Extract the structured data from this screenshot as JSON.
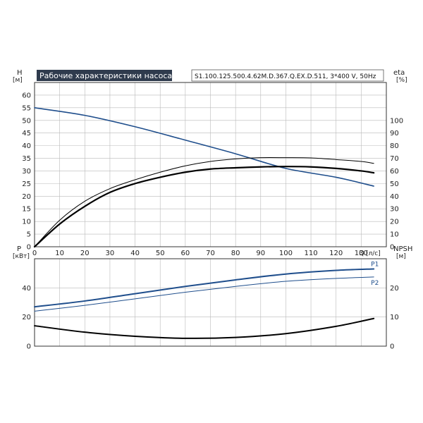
{
  "title": "Рабочие характеристики насоса",
  "model": "S1.100.125.500.4.62M.D.367.Q.EX.D.511, 3*400 V, 50Hz",
  "colors": {
    "blue": "#1f4e8c",
    "black": "#000000",
    "grid": "#b9b9b9",
    "title_bg": "#2f3b4d"
  },
  "chart_data": [
    {
      "type": "line",
      "xlabel": "Q",
      "xunit": "[л/с]",
      "x_ticks": [
        0,
        10,
        20,
        30,
        40,
        50,
        60,
        70,
        80,
        90,
        100,
        110,
        120,
        130
      ],
      "xlim": [
        0,
        140
      ],
      "left_axis": {
        "label": "H",
        "unit": "[м]",
        "ylim": [
          0,
          65
        ],
        "ticks": [
          0,
          5,
          10,
          15,
          20,
          25,
          30,
          35,
          40,
          45,
          50,
          55,
          60
        ]
      },
      "right_axis": {
        "label": "eta",
        "unit": "[%]",
        "ylim": [
          0,
          130
        ],
        "ticks": [
          0,
          10,
          20,
          30,
          40,
          50,
          60,
          70,
          80,
          90,
          100
        ]
      },
      "grid": true,
      "series": [
        {
          "axis": "left",
          "color": "#1f4e8c",
          "width": 1.6,
          "x": [
            0,
            20,
            40,
            60,
            80,
            100,
            120,
            135
          ],
          "y": [
            55,
            52,
            47.5,
            42.2,
            36.8,
            31,
            27.5,
            24
          ]
        },
        {
          "axis": "right",
          "color": "#000000",
          "width": 1.0,
          "x": [
            0,
            10,
            20,
            30,
            40,
            50,
            60,
            70,
            80,
            90,
            100,
            110,
            120,
            130,
            135
          ],
          "y": [
            0,
            21,
            36,
            46,
            53,
            59,
            64,
            67.5,
            69.5,
            70.5,
            70.5,
            70.3,
            69,
            67.5,
            66
          ]
        },
        {
          "axis": "right",
          "color": "#000000",
          "width": 2.2,
          "x": [
            0,
            10,
            20,
            30,
            40,
            50,
            60,
            70,
            80,
            90,
            100,
            110,
            120,
            130,
            135
          ],
          "y": [
            0,
            18,
            32,
            43,
            50,
            55,
            59,
            61.5,
            62.5,
            63.2,
            63.5,
            63.2,
            62,
            60,
            58.5
          ]
        }
      ]
    },
    {
      "type": "line",
      "x_ticks": [],
      "xlim": [
        0,
        140
      ],
      "left_axis": {
        "label": "P",
        "unit": "[кВт]",
        "ylim": [
          0,
          60
        ],
        "ticks": [
          0,
          20,
          40
        ]
      },
      "right_axis": {
        "label": "NPSH",
        "unit": "[м]",
        "ylim": [
          0,
          30
        ],
        "ticks": [
          0,
          10,
          20
        ]
      },
      "grid": true,
      "series": [
        {
          "name": "P1",
          "axis": "left",
          "color": "#1f4e8c",
          "width": 2.0,
          "x": [
            0,
            20,
            40,
            60,
            80,
            100,
            120,
            135
          ],
          "y": [
            27,
            31,
            36,
            41,
            45.5,
            49.5,
            52,
            53
          ]
        },
        {
          "name": "P2",
          "axis": "left",
          "color": "#1f4e8c",
          "width": 1.0,
          "x": [
            0,
            20,
            40,
            60,
            80,
            100,
            120,
            135
          ],
          "y": [
            24,
            28,
            32.5,
            37,
            41,
            44.5,
            46.5,
            47.5
          ]
        },
        {
          "axis": "right",
          "color": "#000000",
          "width": 2.0,
          "x": [
            0,
            20,
            40,
            60,
            80,
            100,
            120,
            135
          ],
          "y": [
            7,
            4.8,
            3.4,
            2.7,
            3,
            4.3,
            6.8,
            9.5
          ]
        }
      ]
    }
  ]
}
